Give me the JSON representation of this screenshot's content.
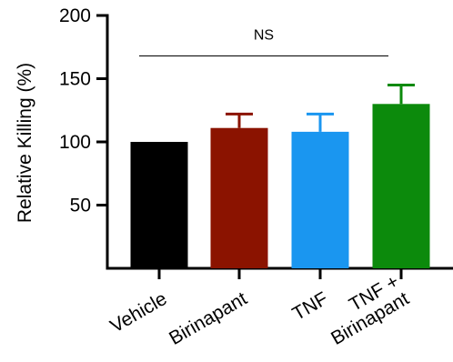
{
  "chart_data": {
    "type": "bar",
    "title": "",
    "xlabel": "",
    "ylabel": "Relative Killing (%)",
    "ylim": [
      0,
      200
    ],
    "yticks": [
      50,
      100,
      150,
      200
    ],
    "grid": false,
    "legend": "none",
    "categories": [
      [
        "Vehicle"
      ],
      [
        "Birinapant"
      ],
      [
        "TNF"
      ],
      [
        "TNF +",
        "Birinapant"
      ]
    ],
    "values": [
      100,
      111,
      108,
      130
    ],
    "errors": [
      0,
      11,
      14,
      15
    ],
    "colors": [
      "#000000",
      "#8b1300",
      "#1a96f0",
      "#0c8a0c"
    ],
    "annotation": {
      "text": "NS",
      "span": [
        0,
        3
      ],
      "y": 168
    }
  }
}
